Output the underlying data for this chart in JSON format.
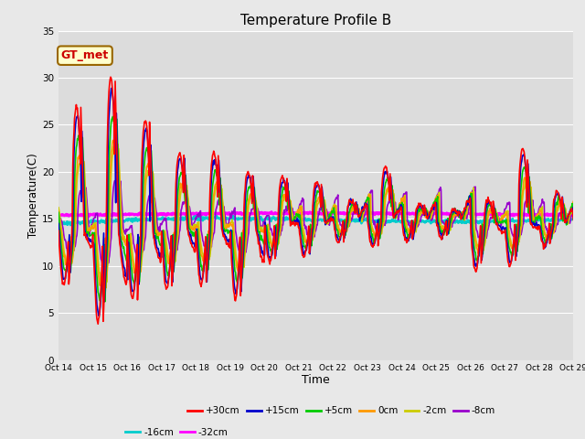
{
  "title": "Temperature Profile B",
  "xlabel": "Time",
  "ylabel": "Temperature(C)",
  "ylim": [
    0,
    35
  ],
  "xlim": [
    0,
    15
  ],
  "xtick_labels": [
    "Oct 14",
    "Oct 15",
    "Oct 16",
    "Oct 17",
    "Oct 18",
    "Oct 19",
    "Oct 20",
    "Oct 21",
    "Oct 22",
    "Oct 23",
    "Oct 24",
    "Oct 25",
    "Oct 26",
    "Oct 27",
    "Oct 28",
    "Oct 29"
  ],
  "ytick_vals": [
    0,
    5,
    10,
    15,
    20,
    25,
    30,
    35
  ],
  "annotation_text": "GT_met",
  "annotation_fgcolor": "#cc0000",
  "annotation_bgcolor": "#ffffcc",
  "annotation_edgecolor": "#996600",
  "series_colors": {
    "+30cm": "#ff0000",
    "+15cm": "#0000cc",
    "+5cm": "#00cc00",
    "0cm": "#ff9900",
    "-2cm": "#cccc00",
    "-8cm": "#9900cc",
    "-16cm": "#00cccc",
    "-32cm": "#ff00ff"
  },
  "series_lw": {
    "+30cm": 1.2,
    "+15cm": 1.2,
    "+5cm": 1.2,
    "0cm": 1.2,
    "-2cm": 1.2,
    "-8cm": 1.2,
    "-16cm": 1.8,
    "-32cm": 2.2
  },
  "fig_color": "#e8e8e8",
  "plot_bg": "#dcdcdc",
  "grid_color": "#ffffff",
  "figsize": [
    6.4,
    4.8
  ],
  "dpi": 100
}
